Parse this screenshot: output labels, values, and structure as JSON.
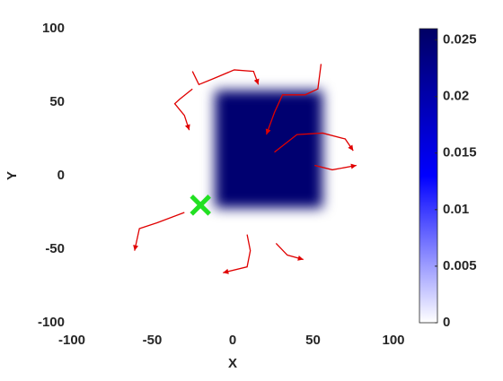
{
  "chart_data": {
    "type": "density",
    "xlabel": "X",
    "ylabel": "Y",
    "xlim": [
      -100,
      100
    ],
    "ylim": [
      -100,
      100
    ],
    "xticks": [
      -100,
      -50,
      0,
      50,
      100
    ],
    "yticks": [
      -100,
      -50,
      0,
      50,
      100
    ],
    "density_region": {
      "x": [
        -11,
        56
      ],
      "y": [
        -22,
        58
      ],
      "value": 0.025
    },
    "colorbar": {
      "lim": [
        0,
        0.026
      ],
      "ticks": [
        0,
        0.005,
        0.01,
        0.015,
        0.02,
        0.025
      ],
      "colors": [
        "#ffffff",
        "#0000ff",
        "#000064"
      ]
    },
    "trajectory_color": "#e00000",
    "trajectories": [
      {
        "x": [
          -25,
          -21,
          -12,
          1,
          13,
          16
        ],
        "y": [
          71,
          62,
          66,
          72,
          71,
          62
        ]
      },
      {
        "x": [
          -25,
          -33,
          -36,
          -30,
          -27
        ],
        "y": [
          59,
          52,
          49,
          41,
          31
        ]
      },
      {
        "x": [
          55,
          53,
          45,
          31,
          26,
          21
        ],
        "y": [
          76,
          59,
          55,
          55,
          43,
          28
        ]
      },
      {
        "x": [
          26,
          40,
          56,
          70,
          75
        ],
        "y": [
          16,
          28,
          29,
          25,
          17
        ]
      },
      {
        "x": [
          51,
          62,
          77
        ],
        "y": [
          7,
          4,
          7
        ]
      },
      {
        "x": [
          -30,
          -47,
          -58,
          -61
        ],
        "y": [
          -25,
          -32,
          -36,
          -51
        ]
      },
      {
        "x": [
          9,
          11,
          9,
          -6
        ],
        "y": [
          -40,
          -51,
          -62,
          -66
        ]
      },
      {
        "x": [
          27,
          34,
          44
        ],
        "y": [
          -46,
          -54,
          -57
        ]
      }
    ],
    "marker": {
      "x": -20,
      "y": -20,
      "color": "#22e022"
    }
  }
}
